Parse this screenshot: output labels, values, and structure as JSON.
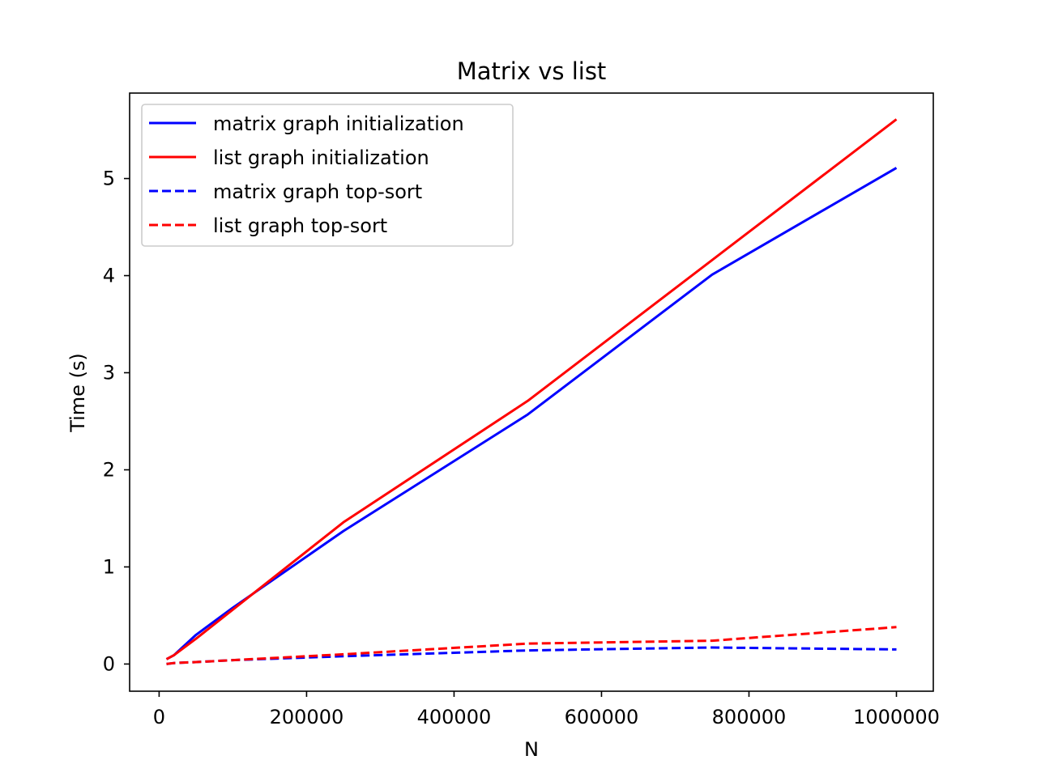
{
  "chart_data": {
    "type": "line",
    "title": "Matrix vs list",
    "xlabel": "N",
    "ylabel": "Time (s)",
    "xlim": [
      -40000,
      1050000
    ],
    "ylim": [
      -0.28,
      5.88
    ],
    "xticks": [
      0,
      200000,
      400000,
      600000,
      800000,
      1000000
    ],
    "xtick_labels": [
      "0",
      "200000",
      "400000",
      "600000",
      "800000",
      "1000000"
    ],
    "yticks": [
      0,
      1,
      2,
      3,
      4,
      5
    ],
    "ytick_labels": [
      "0",
      "1",
      "2",
      "3",
      "4",
      "5"
    ],
    "grid": false,
    "legend_position": "upper-left",
    "series": [
      {
        "name": "matrix graph initialization",
        "color": "#0000ff",
        "style": "solid",
        "x": [
          10000,
          20000,
          50000,
          100000,
          250000,
          500000,
          750000,
          1000000
        ],
        "y": [
          0.05,
          0.09,
          0.3,
          0.58,
          1.37,
          2.57,
          4.01,
          5.11
        ]
      },
      {
        "name": "list graph initialization",
        "color": "#ff0000",
        "style": "solid",
        "x": [
          10000,
          20000,
          50000,
          100000,
          250000,
          500000,
          750000,
          1000000
        ],
        "y": [
          0.05,
          0.09,
          0.26,
          0.56,
          1.46,
          2.71,
          4.16,
          5.61
        ]
      },
      {
        "name": "matrix graph top-sort",
        "color": "#0000ff",
        "style": "dashed",
        "x": [
          10000,
          20000,
          50000,
          100000,
          250000,
          500000,
          750000,
          1000000
        ],
        "y": [
          0.0,
          0.01,
          0.02,
          0.04,
          0.08,
          0.14,
          0.17,
          0.15
        ]
      },
      {
        "name": "list graph top-sort",
        "color": "#ff0000",
        "style": "dashed",
        "x": [
          10000,
          20000,
          50000,
          100000,
          250000,
          500000,
          750000,
          1000000
        ],
        "y": [
          0.0,
          0.01,
          0.02,
          0.04,
          0.1,
          0.21,
          0.24,
          0.38
        ]
      }
    ]
  }
}
